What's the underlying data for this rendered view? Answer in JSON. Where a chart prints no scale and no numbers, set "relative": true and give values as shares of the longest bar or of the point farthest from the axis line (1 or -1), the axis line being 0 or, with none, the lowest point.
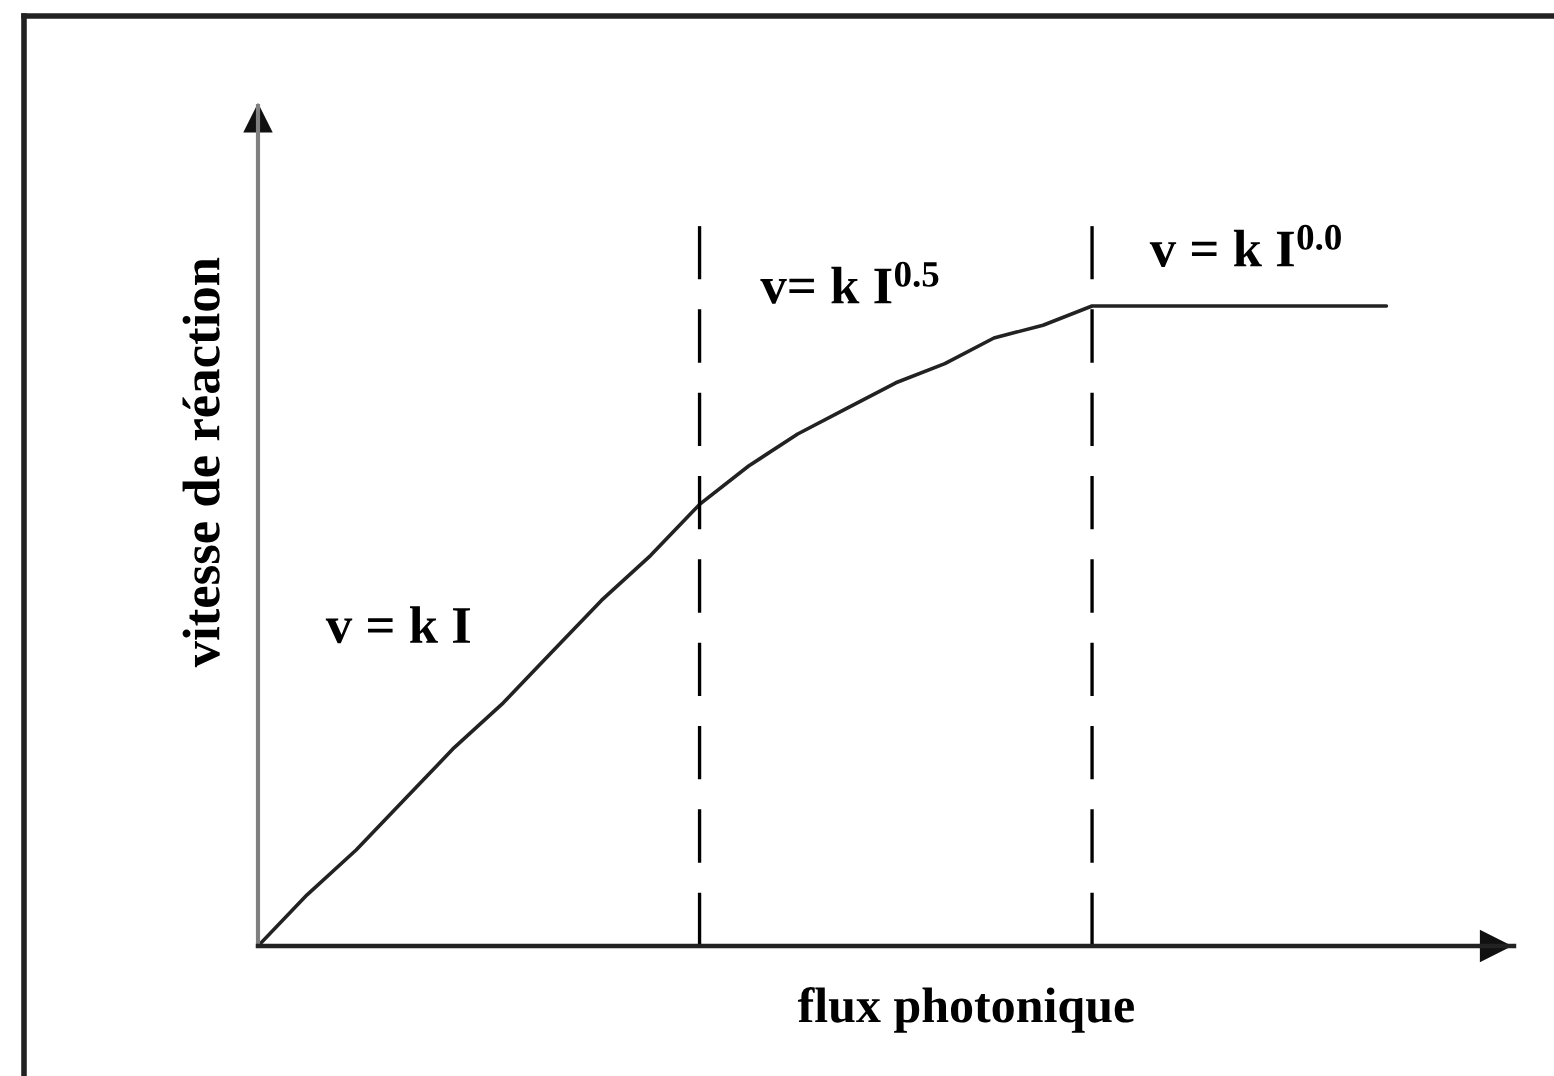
{
  "chart_data": {
    "type": "line",
    "xlabel": "flux photonique",
    "ylabel": "vitesse de réaction",
    "categories": [
      null,
      null,
      null,
      null,
      null,
      null,
      null,
      null,
      null,
      null,
      null,
      null,
      null,
      null,
      null,
      null,
      null,
      null,
      null,
      null,
      null,
      null,
      null,
      null
    ],
    "series": [
      {
        "color": "#222222",
        "values": [
          0,
          0.08,
          0.15,
          0.23,
          0.31,
          0.38,
          0.46,
          0.54,
          0.61,
          0.69,
          0.75,
          0.8,
          0.84,
          0.88,
          0.91,
          0.95,
          0.97,
          1,
          1,
          1,
          1,
          1,
          1,
          1
        ]
      }
    ],
    "relative": true,
    "annotations": [
      "v = k I",
      "v= k I$^{0.5}$",
      "v = k I$^{0.0}$"
    ]
  }
}
